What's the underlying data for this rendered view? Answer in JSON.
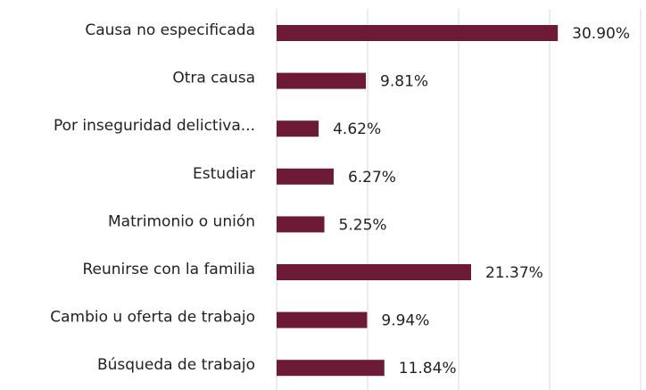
{
  "chart_data": {
    "type": "hbar",
    "categories": [
      "Causa no especificada",
      "Otra causa",
      "Por inseguridad delictiva...",
      "Estudiar",
      "Matrimonio o unión",
      "Reunirse con la familia",
      "Cambio u oferta de trabajo",
      "Búsqueda de trabajo"
    ],
    "values": [
      30.9,
      9.81,
      4.62,
      6.27,
      5.25,
      21.37,
      9.94,
      11.84
    ],
    "value_labels": [
      "30.90%",
      "9.81%",
      "4.62%",
      "6.27%",
      "5.25%",
      "21.37%",
      "9.94%",
      "11.84%"
    ],
    "color": "#6d1a36",
    "xlim": [
      0,
      40
    ],
    "xticks": [
      0,
      10,
      20,
      30,
      40
    ],
    "grid": true
  }
}
